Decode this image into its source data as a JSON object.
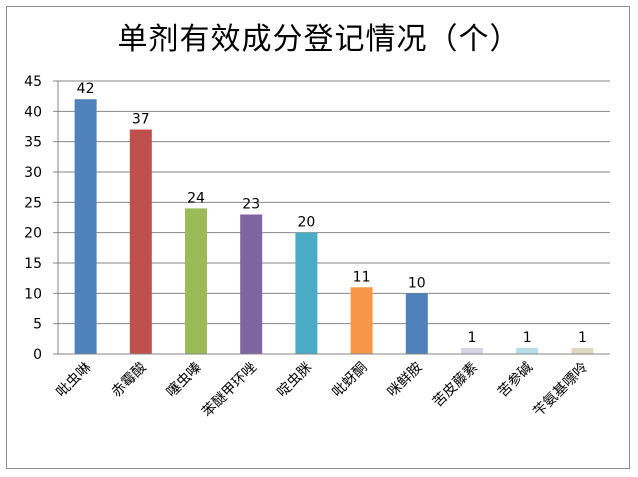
{
  "chart_data": {
    "type": "bar",
    "title": "单剂有效成分登记情况（个）",
    "categories": [
      "吡虫啉",
      "赤霉酸",
      "噻虫嗪",
      "苯醚甲环唑",
      "啶虫脒",
      "吡蚜酮",
      "咪鲜胺",
      "苦皮藤素",
      "苦参碱",
      "苄氨基嘌呤"
    ],
    "values": [
      42,
      37,
      24,
      23,
      20,
      11,
      10,
      1,
      1,
      1
    ],
    "bar_colors": [
      "#4f81bd",
      "#c0504d",
      "#9bbb59",
      "#8064a2",
      "#4bacc6",
      "#f79646",
      "#4f81bd",
      "#d7d3e4",
      "#b7dee8",
      "#ddd9c3"
    ],
    "yticks": [
      0,
      5,
      10,
      15,
      20,
      25,
      30,
      35,
      40,
      45
    ],
    "ylim": [
      0,
      45
    ],
    "xlabel": "",
    "ylabel": "",
    "grid": true,
    "data_labels": true,
    "legend": "none"
  }
}
